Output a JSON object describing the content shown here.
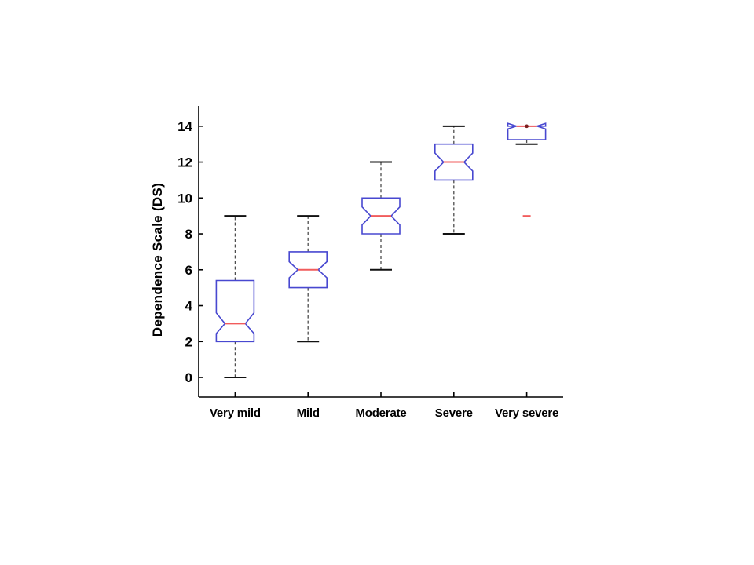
{
  "figure": {
    "background": "#ffffff"
  },
  "chart_data": {
    "type": "boxplot",
    "notched": true,
    "title": "",
    "xlabel": "",
    "ylabel": "Dependence Scale (DS)",
    "categories": [
      "Very mild",
      "Mild",
      "Moderate",
      "Severe",
      "Very severe"
    ],
    "yticks": [
      0,
      2,
      4,
      6,
      8,
      10,
      12,
      14
    ],
    "ylim": [
      -1,
      15
    ],
    "xlim": [
      0.5,
      5.5
    ],
    "grid": false,
    "legend": false,
    "whisker_style": "dashed",
    "series": [
      {
        "category": "Very mild",
        "whisker_low": 0,
        "q1": 2,
        "median": 3,
        "q3": 5.4,
        "whisker_high": 9,
        "notch_low": 2.45,
        "notch_high": 3.6,
        "outliers": [],
        "median_marker": false
      },
      {
        "category": "Mild",
        "whisker_low": 2,
        "q1": 5,
        "median": 6,
        "q3": 7,
        "whisker_high": 9,
        "notch_low": 5.55,
        "notch_high": 6.45,
        "outliers": [],
        "median_marker": false
      },
      {
        "category": "Moderate",
        "whisker_low": 6,
        "q1": 8,
        "median": 9,
        "q3": 10,
        "whisker_high": 12,
        "notch_low": 8.5,
        "notch_high": 9.5,
        "outliers": [],
        "median_marker": false
      },
      {
        "category": "Severe",
        "whisker_low": 8,
        "q1": 11,
        "median": 12,
        "q3": 13,
        "whisker_high": 14,
        "notch_low": 11.5,
        "notch_high": 12.5,
        "outliers": [],
        "median_marker": false
      },
      {
        "category": "Very severe",
        "whisker_low": 13,
        "q1": 13.25,
        "median": 14,
        "q3": 14,
        "whisker_high": 14,
        "notch_low": 13.85,
        "notch_high": 14.16,
        "outliers": [
          9
        ],
        "median_marker": true
      }
    ],
    "colors": {
      "box": "#4848d0",
      "median": "#f15c5c",
      "median_marker": "#7a1f1f",
      "whisker": "#4d4d4d",
      "cap": "#111111",
      "outlier": "#f15c5c",
      "axis": "#000000",
      "background": "#ffffff"
    }
  }
}
